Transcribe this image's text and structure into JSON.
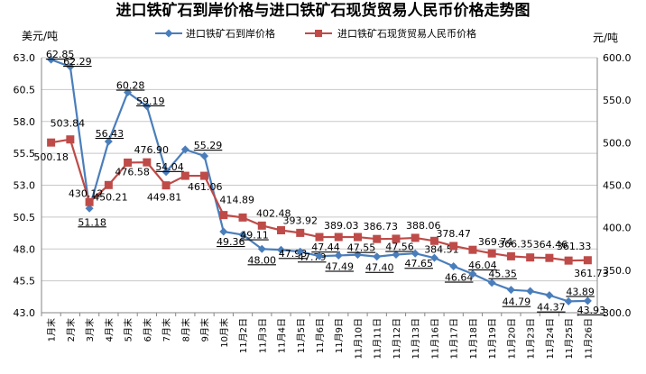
{
  "chart_data": {
    "type": "line",
    "title": "进口铁矿石到岸价格与进口铁矿石现货贸易人民币价格走势图",
    "left_unit": "美元/吨",
    "right_unit": "元/吨",
    "y_left": {
      "min": 43.0,
      "max": 63.0,
      "ticks": [
        "43.0",
        "45.5",
        "48.0",
        "50.5",
        "53.0",
        "55.5",
        "58.0",
        "60.5",
        "63.0"
      ]
    },
    "y_right": {
      "min": 300.0,
      "max": 600.0,
      "ticks": [
        "300.0",
        "350.0",
        "400.0",
        "450.0",
        "500.0",
        "550.0",
        "600.0"
      ]
    },
    "categories": [
      "1月末",
      "2月末",
      "3月末",
      "4月末",
      "5月末",
      "6月末",
      "7月末",
      "8月末",
      "9月末",
      "10月末",
      "11月2日",
      "11月3日",
      "11月4日",
      "11月5日",
      "11月6日",
      "11月9日",
      "11月10日",
      "11月11日",
      "11月12日",
      "11月13日",
      "11月16日",
      "11月17日",
      "11月18日",
      "11月19日",
      "11月20日",
      "11月23日",
      "11月24日",
      "11月25日",
      "11月26日"
    ],
    "legend_position": "top",
    "grid": true,
    "series": [
      {
        "name": "进口铁矿石到岸价格",
        "axis": "left",
        "color": "#4a7ebb",
        "marker": "diamond",
        "values": [
          62.85,
          62.29,
          51.18,
          56.43,
          60.28,
          59.19,
          54.04,
          55.8,
          55.29,
          49.36,
          49.11,
          48.0,
          47.93,
          47.79,
          47.44,
          47.49,
          47.55,
          47.4,
          47.56,
          47.65,
          47.3,
          46.64,
          46.04,
          45.35,
          44.79,
          44.7,
          44.37,
          43.89,
          43.93
        ],
        "labels": [
          "62.85",
          "62.29",
          "51.18",
          "56.43",
          "60.28",
          "59.19",
          "54.04",
          "",
          "55.29",
          "49.36",
          "49.11",
          "48.00",
          "47.93",
          "47.79",
          "47.44",
          "47.49",
          "47.55",
          "47.40",
          "47.56",
          "47.65",
          "",
          "46.64",
          "46.04",
          "45.35",
          "44.79",
          "",
          "44.37",
          "43.89",
          "43.93"
        ]
      },
      {
        "name": "进口铁矿石现货贸易人民币价格",
        "axis": "right",
        "color": "#be4b48",
        "marker": "square",
        "values": [
          500.18,
          503.84,
          430.12,
          450.21,
          476.58,
          476.9,
          449.81,
          461.06,
          461.06,
          414.89,
          412.0,
          402.48,
          397.0,
          393.92,
          389.0,
          389.03,
          389.0,
          386.73,
          387.0,
          388.06,
          384.51,
          378.47,
          374.0,
          369.74,
          366.35,
          365.0,
          364.46,
          361.33,
          361.73
        ],
        "labels": [
          "500.18",
          "503.84",
          "430.12",
          "450.21",
          "476.58",
          "476.90",
          "449.81",
          "461.06",
          "",
          "414.89",
          "",
          "402.48",
          "",
          "393.92",
          "",
          "389.03",
          "",
          "386.73",
          "",
          "388.06",
          "384.51",
          "378.47",
          "",
          "369.74",
          "366.35",
          "",
          "364.46",
          "361.33",
          "361.73"
        ]
      }
    ]
  }
}
